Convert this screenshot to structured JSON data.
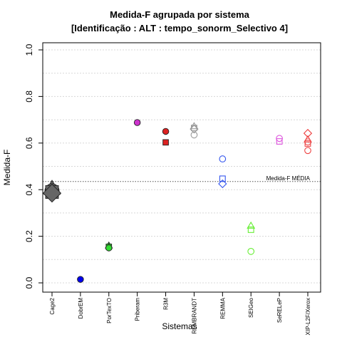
{
  "chart_data": {
    "type": "scatter",
    "title": "Medida-F agrupada por sistema",
    "subtitle": "[Identificação : ALT : tempo_sonorm_Selectivo 4]",
    "xlabel": "Sistemas",
    "ylabel": "Medida-F",
    "ylim": [
      0,
      1
    ],
    "yticks": [
      "0.0",
      "0.2",
      "0.4",
      "0.6",
      "0.8",
      "1.0"
    ],
    "grid": true,
    "categories": [
      "Cage2",
      "DobrEM",
      "PorTexTO",
      "Priberam",
      "R3M",
      "REMBRANDT",
      "REMMA",
      "SEIGeo",
      "SeRELeP",
      "XIP-L2F/Xerox"
    ],
    "reference_line": {
      "value": 0.435,
      "label": "Medida-F MÉDIA"
    },
    "points": [
      {
        "category": "Cage2",
        "value": 0.405,
        "shape": "triangle",
        "fill": true,
        "color": "#666666",
        "size": "large"
      },
      {
        "category": "Cage2",
        "value": 0.395,
        "shape": "circle",
        "fill": true,
        "color": "#666666",
        "size": "large"
      },
      {
        "category": "Cage2",
        "value": 0.39,
        "shape": "square",
        "fill": true,
        "color": "#666666",
        "size": "large"
      },
      {
        "category": "Cage2",
        "value": 0.385,
        "shape": "diamond",
        "fill": true,
        "color": "#666666",
        "size": "large"
      },
      {
        "category": "DobrEM",
        "value": 0.015,
        "shape": "circle",
        "fill": true,
        "color": "#0000ee"
      },
      {
        "category": "PorTexTO",
        "value": 0.16,
        "shape": "triangle",
        "fill": true,
        "color": "#33dd33"
      },
      {
        "category": "PorTexTO",
        "value": 0.155,
        "shape": "square",
        "fill": true,
        "color": "#33dd33"
      },
      {
        "category": "PorTexTO",
        "value": 0.15,
        "shape": "circle",
        "fill": true,
        "color": "#33dd33"
      },
      {
        "category": "Priberam",
        "value": 0.688,
        "shape": "circle",
        "fill": true,
        "color": "#cc33cc"
      },
      {
        "category": "R3M",
        "value": 0.65,
        "shape": "circle",
        "fill": true,
        "color": "#dd2222"
      },
      {
        "category": "R3M",
        "value": 0.603,
        "shape": "square",
        "fill": true,
        "color": "#dd2222"
      },
      {
        "category": "REMBRANDT",
        "value": 0.672,
        "shape": "triangle",
        "fill": false,
        "color": "#999999"
      },
      {
        "category": "REMBRANDT",
        "value": 0.665,
        "shape": "square",
        "fill": false,
        "color": "#999999"
      },
      {
        "category": "REMBRANDT",
        "value": 0.66,
        "shape": "diamond",
        "fill": false,
        "color": "#999999"
      },
      {
        "category": "REMBRANDT",
        "value": 0.635,
        "shape": "circle",
        "fill": false,
        "color": "#999999"
      },
      {
        "category": "REMMA",
        "value": 0.532,
        "shape": "circle",
        "fill": false,
        "color": "#3355ee"
      },
      {
        "category": "REMMA",
        "value": 0.447,
        "shape": "square",
        "fill": false,
        "color": "#3355ee"
      },
      {
        "category": "REMMA",
        "value": 0.425,
        "shape": "diamond",
        "fill": false,
        "color": "#3355ee"
      },
      {
        "category": "SEIGeo",
        "value": 0.245,
        "shape": "triangle",
        "fill": false,
        "color": "#66ee33"
      },
      {
        "category": "SEIGeo",
        "value": 0.228,
        "shape": "square",
        "fill": false,
        "color": "#66ee33"
      },
      {
        "category": "SEIGeo",
        "value": 0.135,
        "shape": "circle",
        "fill": false,
        "color": "#66ee33"
      },
      {
        "category": "SeRELeP",
        "value": 0.62,
        "shape": "circle",
        "fill": false,
        "color": "#dd55dd"
      },
      {
        "category": "SeRELeP",
        "value": 0.607,
        "shape": "square",
        "fill": false,
        "color": "#dd55dd"
      },
      {
        "category": "XIP-L2F/Xerox",
        "value": 0.642,
        "shape": "diamond",
        "fill": false,
        "color": "#ee4444"
      },
      {
        "category": "XIP-L2F/Xerox",
        "value": 0.615,
        "shape": "triangle",
        "fill": false,
        "color": "#ee4444"
      },
      {
        "category": "XIP-L2F/Xerox",
        "value": 0.598,
        "shape": "square",
        "fill": false,
        "color": "#ee4444"
      },
      {
        "category": "XIP-L2F/Xerox",
        "value": 0.605,
        "shape": "circle",
        "fill": false,
        "color": "#ee4444"
      },
      {
        "category": "XIP-L2F/Xerox",
        "value": 0.568,
        "shape": "circle",
        "fill": false,
        "color": "#ee4444"
      }
    ]
  }
}
